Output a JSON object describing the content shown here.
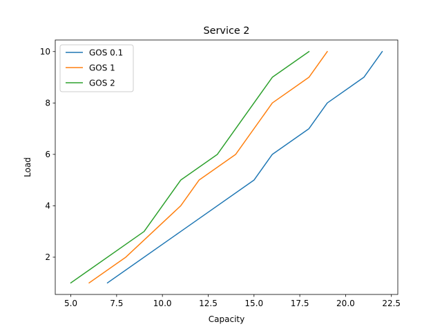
{
  "chart_data": {
    "type": "line",
    "title": "Service 2",
    "xlabel": "Capacity",
    "ylabel": "Load",
    "xlim": [
      4.15,
      22.85
    ],
    "ylim": [
      0.55,
      10.45
    ],
    "xticks": [
      5.0,
      7.5,
      10.0,
      12.5,
      15.0,
      17.5,
      20.0,
      22.5
    ],
    "xtick_labels": [
      "5.0",
      "7.5",
      "10.0",
      "12.5",
      "15.0",
      "17.5",
      "20.0",
      "22.5"
    ],
    "yticks": [
      2,
      4,
      6,
      8,
      10
    ],
    "ytick_labels": [
      "2",
      "4",
      "6",
      "8",
      "10"
    ],
    "grid": false,
    "legend_position": "top-left",
    "series": [
      {
        "name": "GOS 0.1",
        "color": "#1f77b4",
        "x": [
          7,
          11,
          15,
          16,
          18,
          19,
          21,
          22
        ],
        "y": [
          1,
          3,
          5,
          6,
          7,
          8,
          9,
          10
        ]
      },
      {
        "name": "GOS 1",
        "color": "#ff7f0e",
        "x": [
          6,
          8,
          11,
          12,
          14,
          16,
          18,
          19
        ],
        "y": [
          1,
          2,
          4,
          5,
          6,
          8,
          9,
          10
        ]
      },
      {
        "name": "GOS 2",
        "color": "#2ca02c",
        "x": [
          5,
          9,
          11,
          13,
          16,
          18
        ],
        "y": [
          1,
          3,
          5,
          6,
          9,
          10
        ]
      }
    ]
  }
}
